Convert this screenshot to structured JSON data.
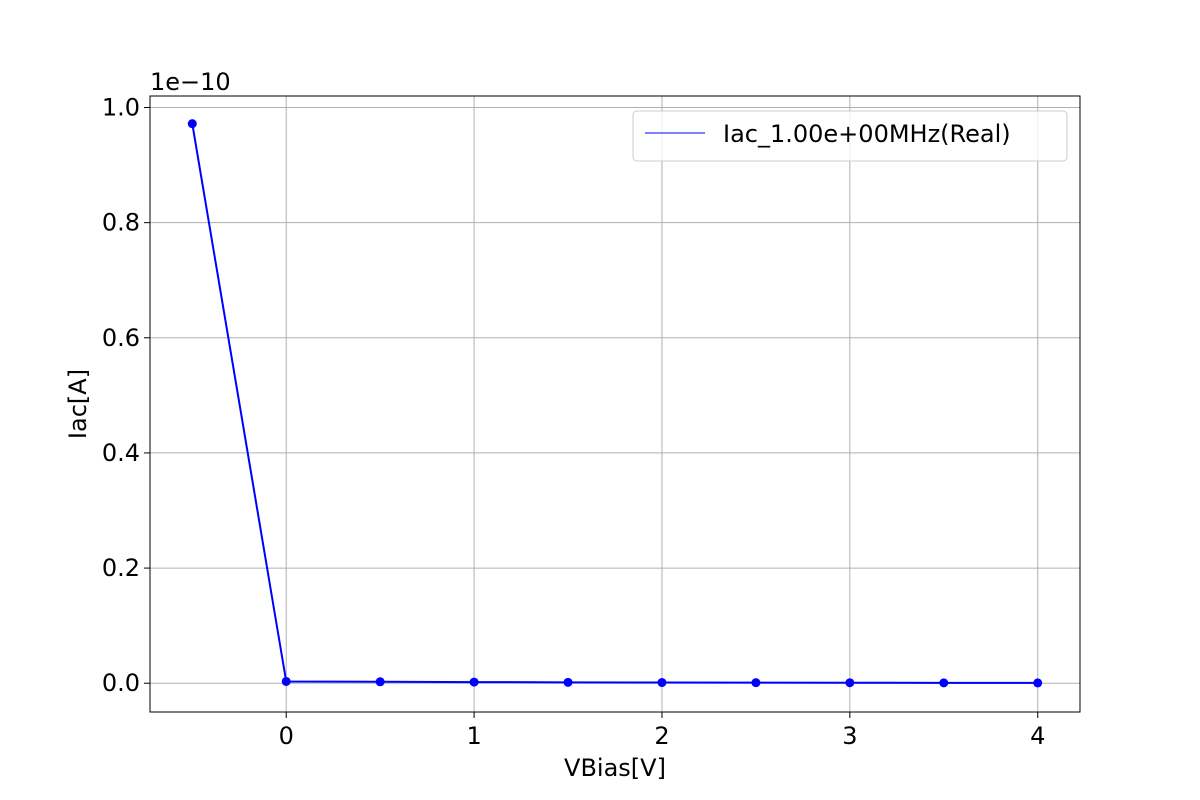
{
  "chart_data": {
    "type": "line",
    "xlabel": "VBias[V]",
    "ylabel": "Iac[A]",
    "offset_text": "1e−10",
    "y_scale": 1e-10,
    "xlim": [
      -0.725,
      4.225
    ],
    "ylim": [
      -5e-12,
      1.02e-10
    ],
    "x_ticks": [
      0,
      1,
      2,
      3,
      4
    ],
    "x_tick_labels": [
      "0",
      "1",
      "2",
      "3",
      "4"
    ],
    "y_ticks": [
      0.0,
      2e-11,
      4e-11,
      6e-11,
      8e-11,
      1e-10
    ],
    "y_tick_labels": [
      "0.0",
      "0.2",
      "0.4",
      "0.6",
      "0.8",
      "1.0"
    ],
    "grid": true,
    "legend_position": "upper right",
    "series": [
      {
        "name": "Iac_1.00e+00MHz(Real)",
        "color": "#0000ff",
        "marker": "circle",
        "x": [
          -0.5,
          0.0,
          0.5,
          1.0,
          1.5,
          2.0,
          2.5,
          3.0,
          3.5,
          4.0
        ],
        "y": [
          9.72e-11,
          3e-13,
          2.5e-13,
          2e-13,
          1.5e-13,
          1.2e-13,
          1e-13,
          8e-14,
          6e-14,
          5e-14
        ]
      }
    ]
  }
}
